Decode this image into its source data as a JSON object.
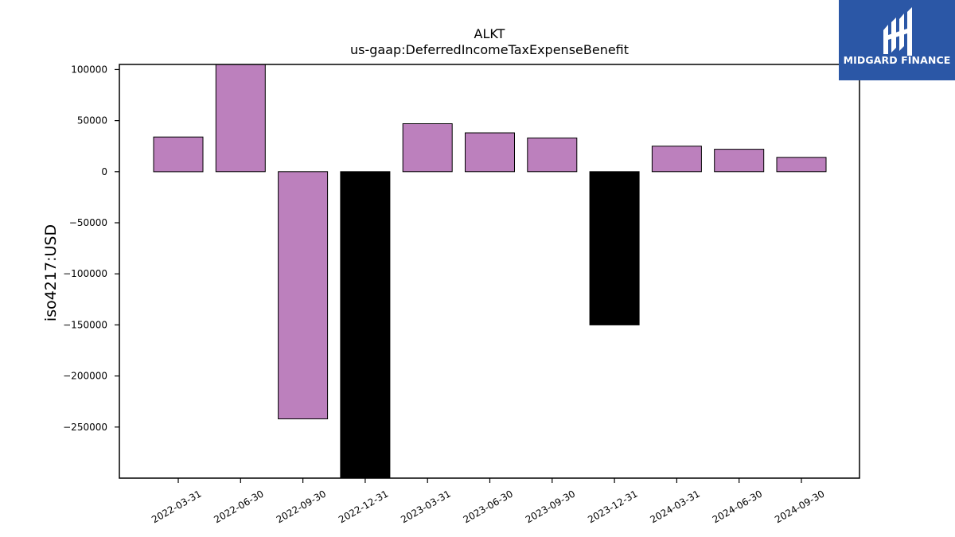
{
  "chart_data": {
    "type": "bar",
    "title": "ALKT",
    "subtitle": "us-gaap:DeferredIncomeTaxExpenseBenefit",
    "xlabel": "",
    "ylabel": "iso4217:USD",
    "categories": [
      "2022-03-31",
      "2022-06-30",
      "2022-09-30",
      "2022-12-31",
      "2023-03-31",
      "2023-06-30",
      "2023-09-30",
      "2023-12-31",
      "2024-03-31",
      "2024-06-30",
      "2024-09-30"
    ],
    "values": [
      34000,
      105000,
      -242000,
      -300000,
      47000,
      38000,
      33000,
      -150000,
      25000,
      22000,
      14000
    ],
    "bar_colors": [
      "#bc80bd",
      "#bc80bd",
      "#bc80bd",
      "#000000",
      "#bc80bd",
      "#bc80bd",
      "#bc80bd",
      "#000000",
      "#bc80bd",
      "#bc80bd",
      "#bc80bd"
    ],
    "ylim": [
      -300000,
      105000
    ],
    "yticks": [
      100000,
      50000,
      0,
      -50000,
      -100000,
      -150000,
      -200000,
      -250000
    ],
    "ytick_labels": [
      "100000",
      "50000",
      "0",
      "−50000",
      "−100000",
      "−150000",
      "−200000",
      "−250000"
    ],
    "grid": false,
    "legend": "none"
  },
  "logo": {
    "text": "MIDGARD FINANCE",
    "icon": "midgard-logo-icon",
    "background": "#2b57a6"
  }
}
